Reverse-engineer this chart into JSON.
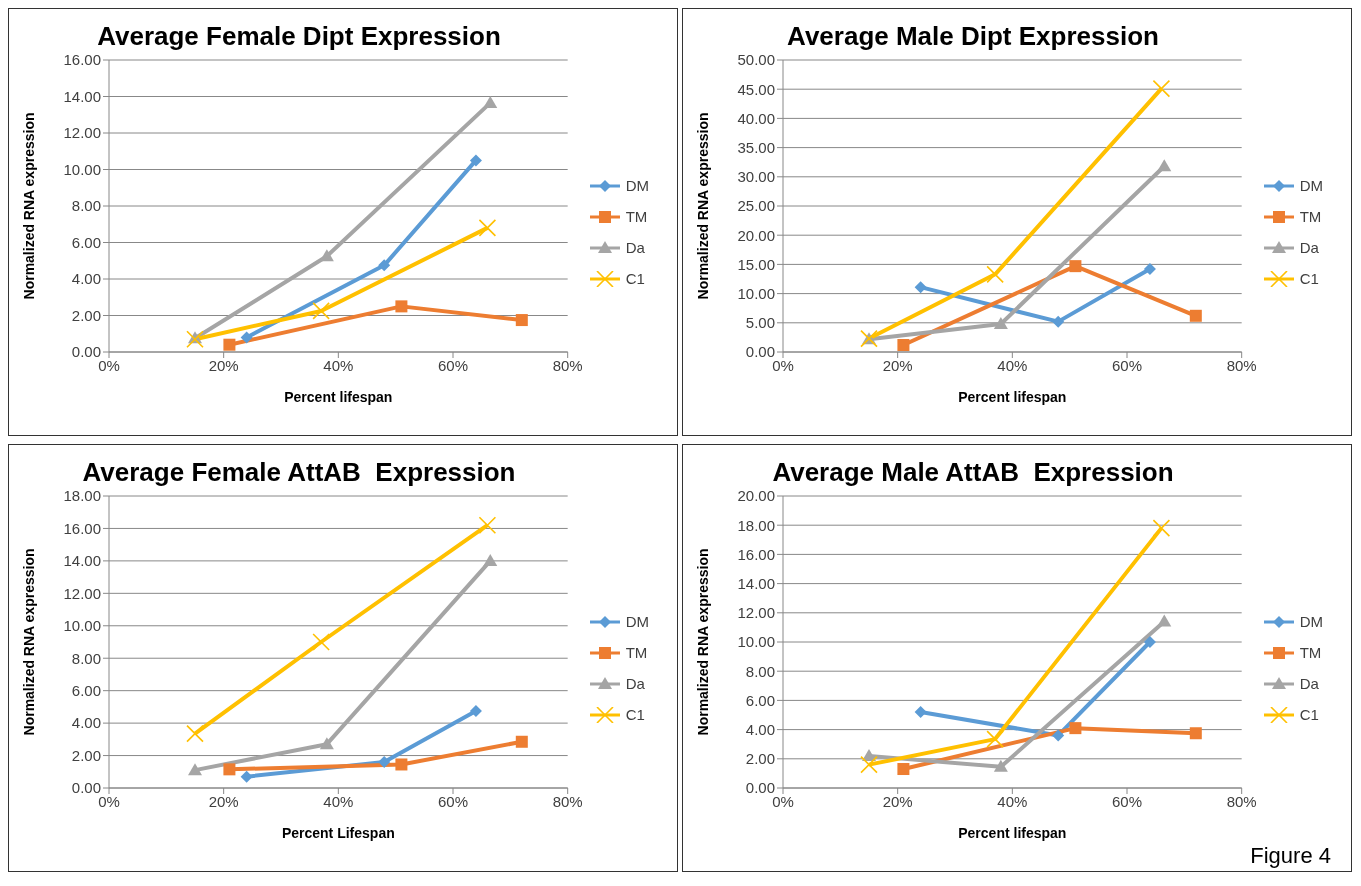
{
  "chart_data": [
    {
      "type": "line",
      "title": "Average Female Dipt Expression",
      "xlabel": "Percent lifespan",
      "ylabel": "Normalized RNA expression",
      "legend": "right",
      "grid": "y",
      "xlim": [
        0,
        0.8
      ],
      "xticks": [
        {
          "value": 0,
          "label": "0%"
        },
        {
          "value": 0.2,
          "label": "20%"
        },
        {
          "value": 0.4,
          "label": "40%"
        },
        {
          "value": 0.6,
          "label": "60%"
        },
        {
          "value": 0.8,
          "label": "80%"
        }
      ],
      "ylim": [
        0,
        16
      ],
      "yticks": [
        {
          "value": 0,
          "label": "0.00"
        },
        {
          "value": 2,
          "label": "2.00"
        },
        {
          "value": 4,
          "label": "4.00"
        },
        {
          "value": 6,
          "label": "6.00"
        },
        {
          "value": 8,
          "label": "8.00"
        },
        {
          "value": 10,
          "label": "10.00"
        },
        {
          "value": 12,
          "label": "12.00"
        },
        {
          "value": 14,
          "label": "14.00"
        },
        {
          "value": 16,
          "label": "16.00"
        }
      ],
      "series": [
        {
          "name": "DM",
          "color": "#5b9bd5",
          "marker": "diamond",
          "x": [
            0.24,
            0.48,
            0.64
          ],
          "values": [
            0.8,
            4.75,
            10.5
          ]
        },
        {
          "name": "TM",
          "color": "#ed7d31",
          "marker": "square",
          "x": [
            0.21,
            0.51,
            0.72
          ],
          "values": [
            0.4,
            2.5,
            1.75
          ]
        },
        {
          "name": "Da",
          "color": "#a5a5a5",
          "marker": "triangle",
          "x": [
            0.15,
            0.38,
            0.665
          ],
          "values": [
            0.75,
            5.25,
            13.65
          ]
        },
        {
          "name": "C1",
          "color": "#ffc000",
          "marker": "cross",
          "x": [
            0.15,
            0.37,
            0.66
          ],
          "values": [
            0.7,
            2.25,
            6.8
          ]
        }
      ]
    },
    {
      "type": "line",
      "title": "Average Male Dipt Expression",
      "xlabel": "Percent lifespan",
      "ylabel": "Normalized RNA expression",
      "legend": "right",
      "grid": "y",
      "xlim": [
        0,
        0.8
      ],
      "xticks": [
        {
          "value": 0,
          "label": "0%"
        },
        {
          "value": 0.2,
          "label": "20%"
        },
        {
          "value": 0.4,
          "label": "40%"
        },
        {
          "value": 0.6,
          "label": "60%"
        },
        {
          "value": 0.8,
          "label": "80%"
        }
      ],
      "ylim": [
        0,
        50
      ],
      "yticks": [
        {
          "value": 0,
          "label": "0.00"
        },
        {
          "value": 5,
          "label": "5.00"
        },
        {
          "value": 10,
          "label": "10.00"
        },
        {
          "value": 15,
          "label": "15.00"
        },
        {
          "value": 20,
          "label": "20.00"
        },
        {
          "value": 25,
          "label": "25.00"
        },
        {
          "value": 30,
          "label": "30.00"
        },
        {
          "value": 35,
          "label": "35.00"
        },
        {
          "value": 40,
          "label": "40.00"
        },
        {
          "value": 45,
          "label": "45.00"
        },
        {
          "value": 50,
          "label": "50.00"
        }
      ],
      "series": [
        {
          "name": "DM",
          "color": "#5b9bd5",
          "marker": "diamond",
          "x": [
            0.24,
            0.48,
            0.64
          ],
          "values": [
            11.1,
            5.2,
            14.2
          ]
        },
        {
          "name": "TM",
          "color": "#ed7d31",
          "marker": "square",
          "x": [
            0.21,
            0.51,
            0.72
          ],
          "values": [
            1.2,
            14.7,
            6.2
          ]
        },
        {
          "name": "Da",
          "color": "#a5a5a5",
          "marker": "triangle",
          "x": [
            0.15,
            0.38,
            0.665
          ],
          "values": [
            2.2,
            4.8,
            31.8
          ]
        },
        {
          "name": "C1",
          "color": "#ffc000",
          "marker": "cross",
          "x": [
            0.15,
            0.37,
            0.66
          ],
          "values": [
            2.3,
            13.3,
            45.1
          ]
        }
      ]
    },
    {
      "type": "line",
      "title": "Average Female AttAB  Expression",
      "xlabel": "Percent Lifespan",
      "ylabel": "Normalized RNA expression",
      "legend": "right",
      "grid": "y",
      "xlim": [
        0,
        0.8
      ],
      "xticks": [
        {
          "value": 0,
          "label": "0%"
        },
        {
          "value": 0.2,
          "label": "20%"
        },
        {
          "value": 0.4,
          "label": "40%"
        },
        {
          "value": 0.6,
          "label": "60%"
        },
        {
          "value": 0.8,
          "label": "80%"
        }
      ],
      "ylim": [
        0,
        18
      ],
      "yticks": [
        {
          "value": 0,
          "label": "0.00"
        },
        {
          "value": 2,
          "label": "2.00"
        },
        {
          "value": 4,
          "label": "4.00"
        },
        {
          "value": 6,
          "label": "6.00"
        },
        {
          "value": 8,
          "label": "8.00"
        },
        {
          "value": 10,
          "label": "10.00"
        },
        {
          "value": 12,
          "label": "12.00"
        },
        {
          "value": 14,
          "label": "14.00"
        },
        {
          "value": 16,
          "label": "16.00"
        },
        {
          "value": 18,
          "label": "18.00"
        }
      ],
      "series": [
        {
          "name": "DM",
          "color": "#5b9bd5",
          "marker": "diamond",
          "x": [
            0.24,
            0.48,
            0.64
          ],
          "values": [
            0.7,
            1.6,
            4.75
          ]
        },
        {
          "name": "TM",
          "color": "#ed7d31",
          "marker": "square",
          "x": [
            0.21,
            0.51,
            0.72
          ],
          "values": [
            1.15,
            1.45,
            2.85
          ]
        },
        {
          "name": "Da",
          "color": "#a5a5a5",
          "marker": "triangle",
          "x": [
            0.15,
            0.38,
            0.665
          ],
          "values": [
            1.1,
            2.7,
            14.0
          ]
        },
        {
          "name": "C1",
          "color": "#ffc000",
          "marker": "cross",
          "x": [
            0.15,
            0.37,
            0.66
          ],
          "values": [
            3.35,
            9.0,
            16.2
          ]
        }
      ]
    },
    {
      "type": "line",
      "title": "Average Male AttAB  Expression",
      "xlabel": "Percent lifespan",
      "ylabel": "Normalized RNA expression",
      "legend": "right",
      "grid": "y",
      "annotations": [
        "Figure 4"
      ],
      "xlim": [
        0,
        0.8
      ],
      "xticks": [
        {
          "value": 0,
          "label": "0%"
        },
        {
          "value": 0.2,
          "label": "20%"
        },
        {
          "value": 0.4,
          "label": "40%"
        },
        {
          "value": 0.6,
          "label": "60%"
        },
        {
          "value": 0.8,
          "label": "80%"
        }
      ],
      "ylim": [
        0,
        20
      ],
      "yticks": [
        {
          "value": 0,
          "label": "0.00"
        },
        {
          "value": 2,
          "label": "2.00"
        },
        {
          "value": 4,
          "label": "4.00"
        },
        {
          "value": 6,
          "label": "6.00"
        },
        {
          "value": 8,
          "label": "8.00"
        },
        {
          "value": 10,
          "label": "10.00"
        },
        {
          "value": 12,
          "label": "12.00"
        },
        {
          "value": 14,
          "label": "14.00"
        },
        {
          "value": 16,
          "label": "16.00"
        },
        {
          "value": 18,
          "label": "18.00"
        },
        {
          "value": 20,
          "label": "20.00"
        }
      ],
      "series": [
        {
          "name": "DM",
          "color": "#5b9bd5",
          "marker": "diamond",
          "x": [
            0.24,
            0.48,
            0.64
          ],
          "values": [
            5.2,
            3.6,
            10.0
          ]
        },
        {
          "name": "TM",
          "color": "#ed7d31",
          "marker": "square",
          "x": [
            0.21,
            0.51,
            0.72
          ],
          "values": [
            1.3,
            4.1,
            3.75
          ]
        },
        {
          "name": "Da",
          "color": "#a5a5a5",
          "marker": "triangle",
          "x": [
            0.15,
            0.38,
            0.665
          ],
          "values": [
            2.2,
            1.45,
            11.4
          ]
        },
        {
          "name": "C1",
          "color": "#ffc000",
          "marker": "cross",
          "x": [
            0.15,
            0.37,
            0.66
          ],
          "values": [
            1.6,
            3.35,
            17.8
          ]
        }
      ]
    }
  ]
}
